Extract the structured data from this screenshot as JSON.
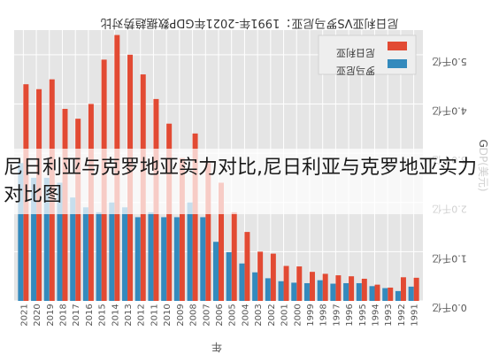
{
  "caption": "尼日利亚与克罗地亚实力对比,尼日利亚与克罗地亚实力对比图",
  "chart_data": {
    "type": "bar",
    "title": "尼日利亚VS罗马尼亚：1991年-2021年GDP数据趋势对比",
    "xlabel": "年",
    "ylabel": "GDP(美元)",
    "ylim": [
      0,
      5.5
    ],
    "yticks": [
      "0.0千亿",
      "1.0千亿",
      "2.0千亿",
      "3.0千亿",
      "4.0千亿",
      "5.0千亿"
    ],
    "grid": true,
    "legend_position": "top-right",
    "categories": [
      "2021",
      "2020",
      "2019",
      "2018",
      "2017",
      "2016",
      "2015",
      "2014",
      "2013",
      "2012",
      "2011",
      "2010",
      "2009",
      "2008",
      "2007",
      "2006",
      "2005",
      "2004",
      "2003",
      "2002",
      "2001",
      "2000",
      "1999",
      "1998",
      "1997",
      "1996",
      "1995",
      "1994",
      "1993",
      "1992",
      "1991"
    ],
    "series": [
      {
        "name": "尼日利亚",
        "color": "#e24a33",
        "values": [
          4.4,
          4.3,
          4.5,
          3.9,
          3.7,
          4.0,
          4.9,
          5.4,
          5.0,
          4.6,
          4.1,
          3.6,
          2.9,
          3.4,
          2.8,
          2.4,
          1.8,
          1.4,
          1.0,
          0.96,
          0.71,
          0.7,
          0.59,
          0.55,
          0.52,
          0.5,
          0.45,
          0.33,
          0.27,
          0.48,
          0.47
        ]
      },
      {
        "name": "罗马尼亚",
        "color": "#348abd",
        "values": [
          2.8,
          2.5,
          2.5,
          2.4,
          2.1,
          1.9,
          1.8,
          2.0,
          1.9,
          1.7,
          1.8,
          1.7,
          1.7,
          2.0,
          1.7,
          1.2,
          0.99,
          0.76,
          0.58,
          0.46,
          0.4,
          0.37,
          0.36,
          0.42,
          0.35,
          0.36,
          0.36,
          0.3,
          0.26,
          0.2,
          0.29
        ]
      }
    ]
  }
}
